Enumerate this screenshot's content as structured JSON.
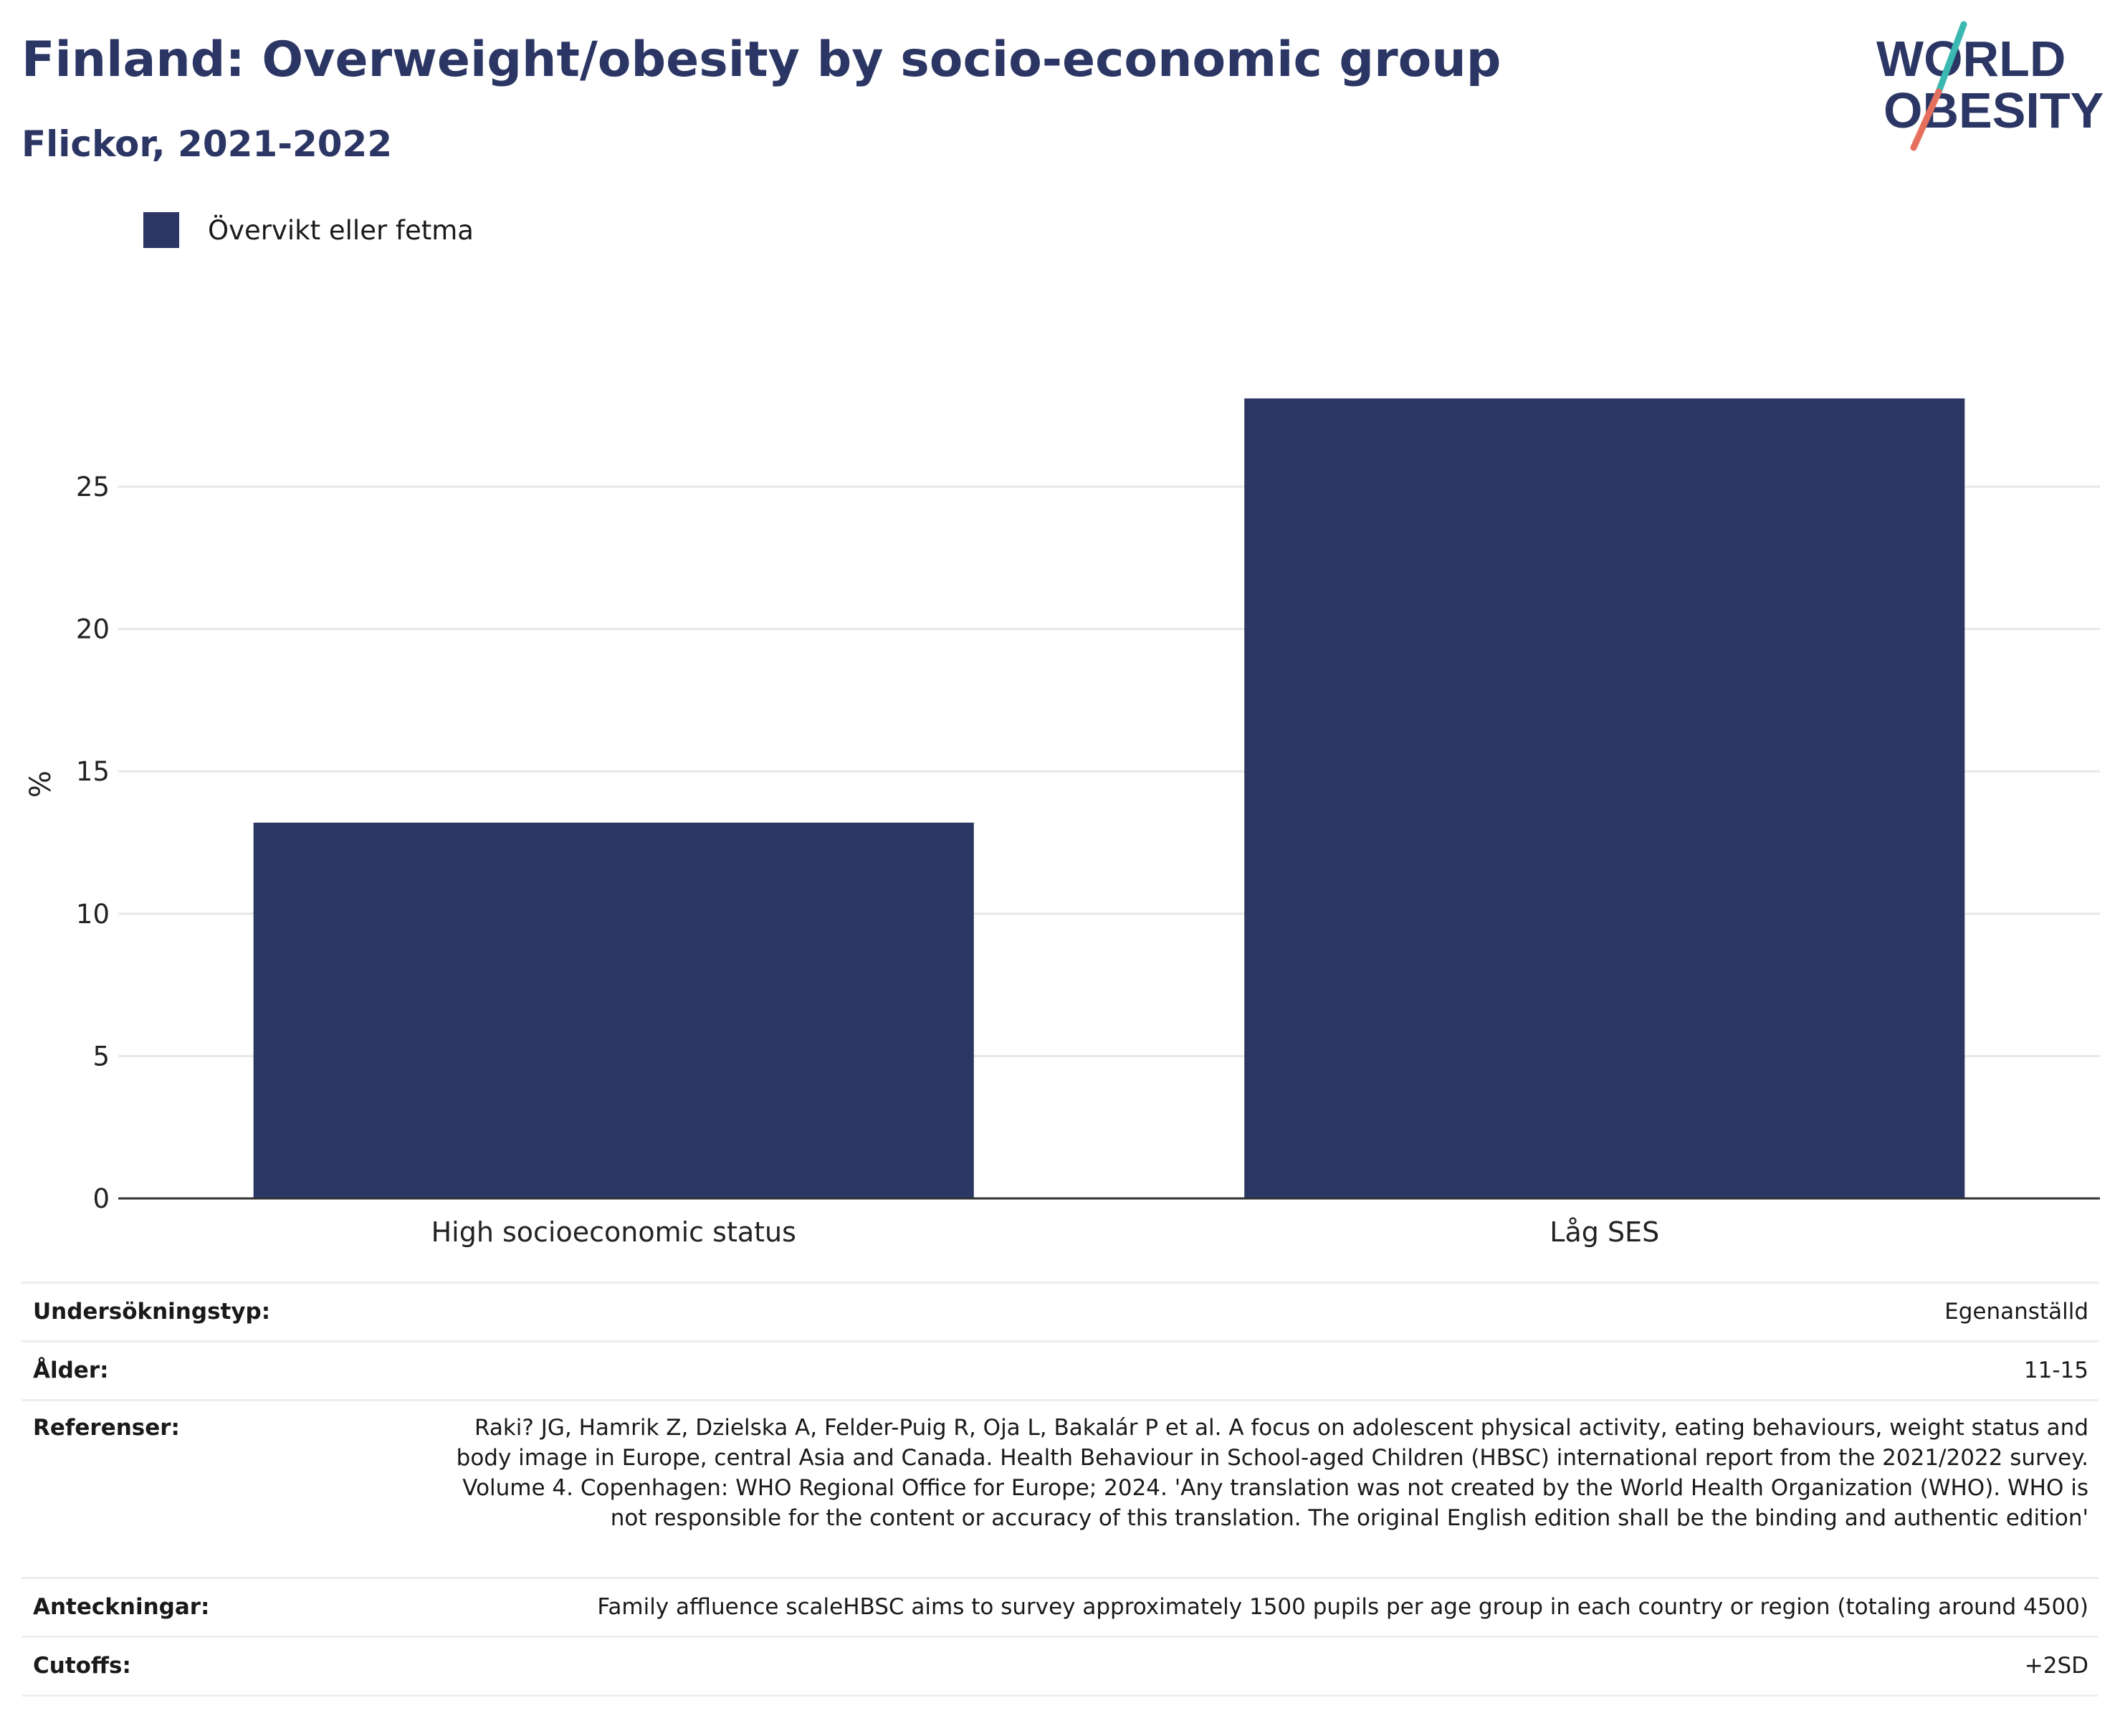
{
  "header": {
    "title": "Finland: Overweight/obesity by socio-economic group",
    "subtitle": "Flickor, 2021-2022"
  },
  "logo": {
    "line1": "WORLD",
    "line2": "OBESITY",
    "icon": "world-obesity-logo",
    "colors": {
      "text": "#2b3664",
      "teal": "#3cb8b2",
      "coral": "#e6705e"
    }
  },
  "colors": {
    "bar": "#2b3664",
    "grid": "#e8e8e8",
    "axis": "#333333"
  },
  "legend": {
    "label": "Övervikt eller fetma"
  },
  "chart_data": {
    "type": "bar",
    "categories": [
      "High socioeconomic status",
      "Låg SES"
    ],
    "series": [
      {
        "name": "Övervikt eller fetma",
        "values": [
          13.2,
          28.1
        ]
      }
    ],
    "ylabel": "%",
    "xlabel": "",
    "ylim": [
      0,
      28.5
    ],
    "yticks": [
      0,
      5,
      10,
      15,
      20,
      25
    ],
    "grid": true,
    "legend_position": "top-left"
  },
  "info": [
    {
      "label": "Undersökningstyp:",
      "value": "Egenanställd"
    },
    {
      "label": "Ålder:",
      "value": "11-15"
    },
    {
      "label": "Referenser:",
      "value": "Raki? JG, Hamrik Z, Dzielska A, Felder-Puig R, Oja L, Bakalár P et al. A focus on adolescent physical activity, eating behaviours, weight status and body image in Europe, central Asia and Canada. Health Behaviour in School-aged Children (HBSC) international report from the 2021/2022 survey. Volume 4. Copenhagen: WHO Regional Office for Europe; 2024. 'Any translation was not created by the World Health Organization (WHO). WHO is not responsible for the content or accuracy of this translation. The original English edition shall be the binding and authentic edition'"
    },
    {
      "label": "Anteckningar:",
      "value": "Family affluence scaleHBSC aims to survey approximately 1500 pupils per age group in each country or region (totaling around 4500)"
    },
    {
      "label": "Cutoffs:",
      "value": "+2SD"
    }
  ]
}
